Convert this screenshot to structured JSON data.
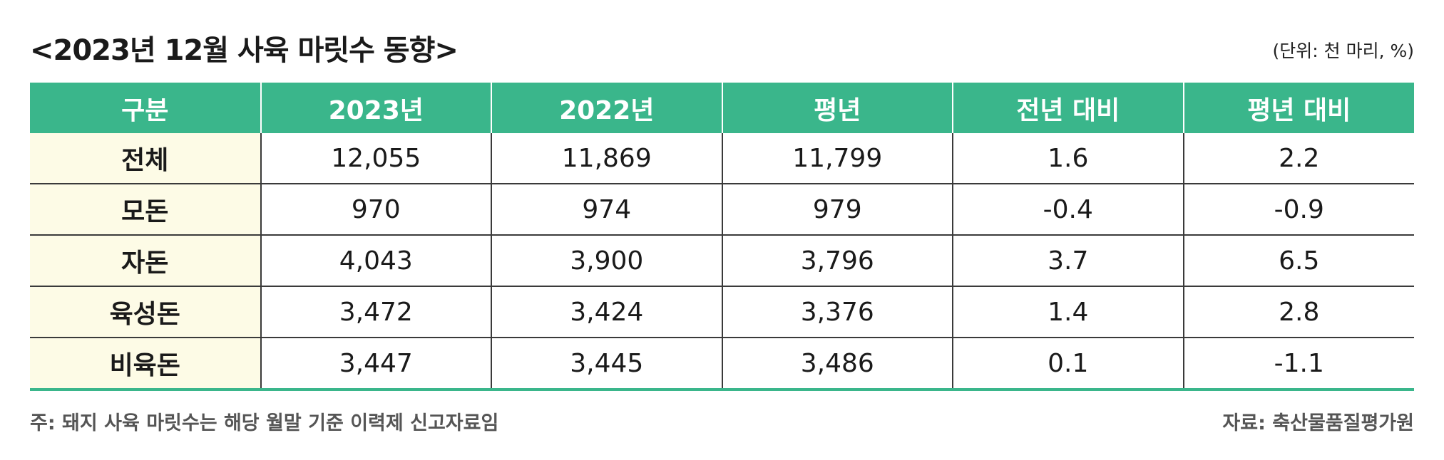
{
  "title": "<2023년 12월 사육 마릿수 동향>",
  "unit": "(단위: 천 마리, %)",
  "table": {
    "headers": [
      "구분",
      "2023년",
      "2022년",
      "평년",
      "전년 대비",
      "평년 대비"
    ],
    "rows": [
      [
        "전체",
        "12,055",
        "11,869",
        "11,799",
        "1.6",
        "2.2"
      ],
      [
        "모돈",
        "970",
        "974",
        "979",
        "-0.4",
        "-0.9"
      ],
      [
        "자돈",
        "4,043",
        "3,900",
        "3,796",
        "3.7",
        "6.5"
      ],
      [
        "육성돈",
        "3,472",
        "3,424",
        "3,376",
        "1.4",
        "2.8"
      ],
      [
        "비육돈",
        "3,447",
        "3,445",
        "3,486",
        "0.1",
        "-1.1"
      ]
    ]
  },
  "footnote": "주: 돼지 사육 마릿수는 해당 월말 기준 이력제 신고자료임",
  "source": "자료: 축산물품질평가원",
  "colors": {
    "header_bg": "#3ab68b",
    "first_col_bg": "#fdfbe6"
  }
}
